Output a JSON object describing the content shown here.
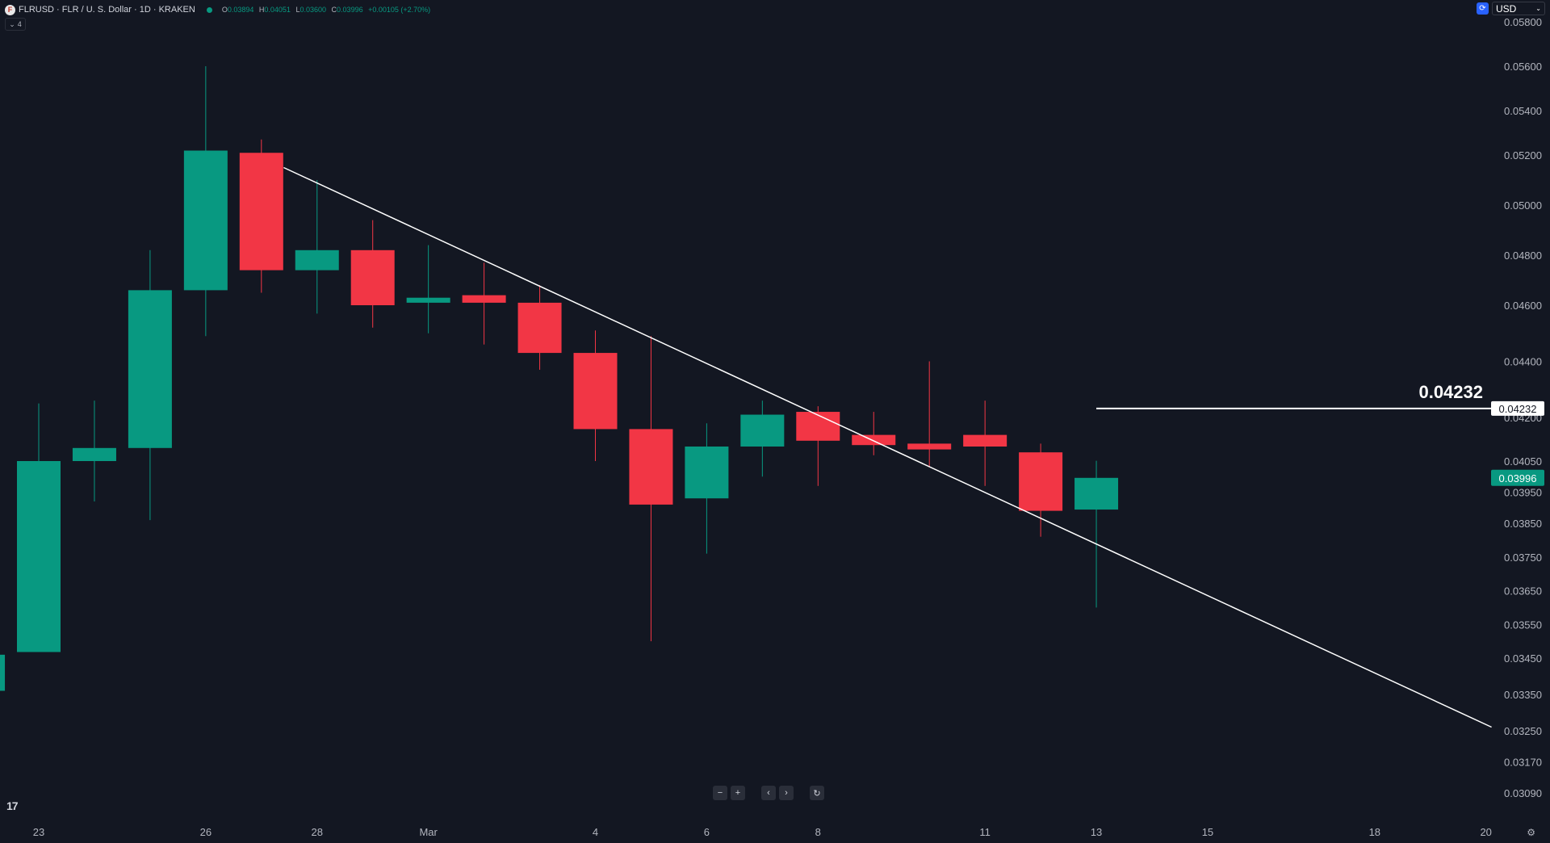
{
  "legend": {
    "symbol_icon": "F",
    "title": "FLRUSD · FLR / U. S. Dollar · 1D · KRAKEN",
    "ohlc": [
      {
        "k": "O",
        "v": "0.03894"
      },
      {
        "k": "H",
        "v": "0.04051"
      },
      {
        "k": "L",
        "v": "0.03600"
      },
      {
        "k": "C",
        "v": "0.03996"
      }
    ],
    "change": "+0.00105 (+2.70%)",
    "collapse_label": "4"
  },
  "currency": {
    "label": "USD",
    "icon": "currency-sync-icon"
  },
  "price_labels": {
    "last_price": "0.03996",
    "level_price": "0.04232",
    "level_big_label": "0.04232"
  },
  "nav": {
    "zoom_out": "−",
    "zoom_in": "+",
    "scroll_left": "‹",
    "scroll_right": "›",
    "reset": "↻"
  },
  "logo": "17",
  "colors": {
    "up": "#089981",
    "down": "#f23645",
    "bg": "#131722",
    "line": "#ffffff"
  },
  "chart_data": {
    "type": "candlestick",
    "title": "FLRUSD · FLR / U. S. Dollar · 1D · KRAKEN",
    "y_ticks": [
      "0.05800",
      "0.05600",
      "0.05400",
      "0.05200",
      "0.05000",
      "0.04800",
      "0.04600",
      "0.04400",
      "0.04200",
      "0.04050",
      "0.03950",
      "0.03850",
      "0.03750",
      "0.03650",
      "0.03550",
      "0.03450",
      "0.03350",
      "0.03250",
      "0.03170",
      "0.03090"
    ],
    "x_ticks": [
      {
        "label": "23",
        "i": 0
      },
      {
        "label": "26",
        "i": 3
      },
      {
        "label": "28",
        "i": 5
      },
      {
        "label": "Mar",
        "i": 7
      },
      {
        "label": "4",
        "i": 10
      },
      {
        "label": "6",
        "i": 12
      },
      {
        "label": "8",
        "i": 14
      },
      {
        "label": "11",
        "i": 17
      },
      {
        "label": "13",
        "i": 19
      },
      {
        "label": "15",
        "i": 21
      },
      {
        "label": "18",
        "i": 24
      },
      {
        "label": "20",
        "i": 26
      }
    ],
    "candles": [
      {
        "i": -1,
        "o": 0.0336,
        "h": 0.0348,
        "l": 0.0335,
        "c": 0.0346
      },
      {
        "i": 0,
        "o": 0.03468,
        "h": 0.0425,
        "l": 0.03468,
        "c": 0.0405
      },
      {
        "i": 1,
        "o": 0.0405,
        "h": 0.0426,
        "l": 0.0392,
        "c": 0.04095
      },
      {
        "i": 2,
        "o": 0.04095,
        "h": 0.0482,
        "l": 0.0386,
        "c": 0.0466
      },
      {
        "i": 3,
        "o": 0.0466,
        "h": 0.056,
        "l": 0.0449,
        "c": 0.0522
      },
      {
        "i": 4,
        "o": 0.0521,
        "h": 0.0527,
        "l": 0.0465,
        "c": 0.0474
      },
      {
        "i": 5,
        "o": 0.0474,
        "h": 0.051,
        "l": 0.0457,
        "c": 0.0482
      },
      {
        "i": 6,
        "o": 0.0482,
        "h": 0.0494,
        "l": 0.0452,
        "c": 0.046
      },
      {
        "i": 7,
        "o": 0.0461,
        "h": 0.0484,
        "l": 0.045,
        "c": 0.0463
      },
      {
        "i": 8,
        "o": 0.0464,
        "h": 0.0477,
        "l": 0.0446,
        "c": 0.0461
      },
      {
        "i": 9,
        "o": 0.0461,
        "h": 0.0468,
        "l": 0.0437,
        "c": 0.0443
      },
      {
        "i": 10,
        "o": 0.0443,
        "h": 0.0451,
        "l": 0.0405,
        "c": 0.0416
      },
      {
        "i": 11,
        "o": 0.0416,
        "h": 0.0449,
        "l": 0.035,
        "c": 0.0391
      },
      {
        "i": 12,
        "o": 0.0393,
        "h": 0.0418,
        "l": 0.0376,
        "c": 0.041
      },
      {
        "i": 13,
        "o": 0.041,
        "h": 0.0426,
        "l": 0.04,
        "c": 0.0421
      },
      {
        "i": 14,
        "o": 0.0422,
        "h": 0.0424,
        "l": 0.0397,
        "c": 0.0412
      },
      {
        "i": 15,
        "o": 0.0414,
        "h": 0.0422,
        "l": 0.0407,
        "c": 0.04105
      },
      {
        "i": 16,
        "o": 0.0411,
        "h": 0.044,
        "l": 0.0403,
        "c": 0.0409
      },
      {
        "i": 17,
        "o": 0.0414,
        "h": 0.0426,
        "l": 0.0397,
        "c": 0.041
      },
      {
        "i": 18,
        "o": 0.0408,
        "h": 0.0411,
        "l": 0.0381,
        "c": 0.0389
      },
      {
        "i": 19,
        "o": 0.03894,
        "h": 0.04051,
        "l": 0.036,
        "c": 0.03996
      }
    ],
    "horizontal_level": 0.04232,
    "trendline": [
      {
        "i": 4.4,
        "p": 0.0515
      },
      {
        "i": 26.1,
        "p": 0.0326
      }
    ]
  }
}
